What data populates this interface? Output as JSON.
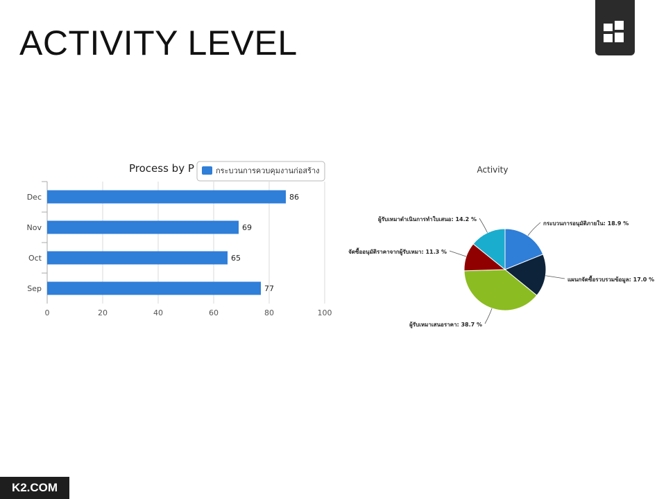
{
  "slide": {
    "title": "ACTIVITY LEVEL",
    "footer": "K2.COM"
  },
  "colors": {
    "bar": "#2f7ed8",
    "logo_bg": "#2b2b2b"
  },
  "chart_data": [
    {
      "type": "bar",
      "orientation": "horizontal",
      "title": "Process by P",
      "categories": [
        "Dec",
        "Nov",
        "Oct",
        "Sep"
      ],
      "series": [
        {
          "name": "กระบวนการควบคุมงานก่อสร้าง",
          "values": [
            86,
            69,
            65,
            77
          ],
          "color": "#2f7ed8"
        }
      ],
      "data_labels": [
        "86",
        "69",
        "65",
        "77"
      ],
      "xlim": [
        0,
        100
      ],
      "xticks": [
        "0",
        "20",
        "40",
        "60",
        "80",
        "100"
      ],
      "grid": true,
      "legend": "top-right"
    },
    {
      "type": "pie",
      "title": "Activity",
      "slices": [
        {
          "label": "กระบวนการอนุมัติภายใน",
          "value": 18.9,
          "text": "กระบวนการอนุมัติภายใน: 18.9 %",
          "color": "#2f7ed8"
        },
        {
          "label": "แผนกจัดซื้อรวบรวมข้อมูล",
          "value": 17.0,
          "text": "แผนกจัดซื้อรวบรวมข้อมูล: 17.0 %",
          "color": "#0d233a"
        },
        {
          "label": "ผู้รับเหมาเสนอราคา",
          "value": 38.7,
          "text": "ผู้รับเหมาเสนอราคา: 38.7 %",
          "color": "#8bbc21"
        },
        {
          "label": "จัดซื้ออนุมัติราคาจากผู้รับเหมา",
          "value": 11.3,
          "text": "จัดซื้ออนุมัติราคาจากผู้รับเหมา: 11.3 %",
          "color": "#910000"
        },
        {
          "label": "ผู้รับเหมาดำเนินการทำใบเสนอ",
          "value": 14.2,
          "text": "ผู้รับเหมาดำเนินการทำใบเสนอ: 14.2 %",
          "color": "#1aadce"
        }
      ]
    }
  ]
}
